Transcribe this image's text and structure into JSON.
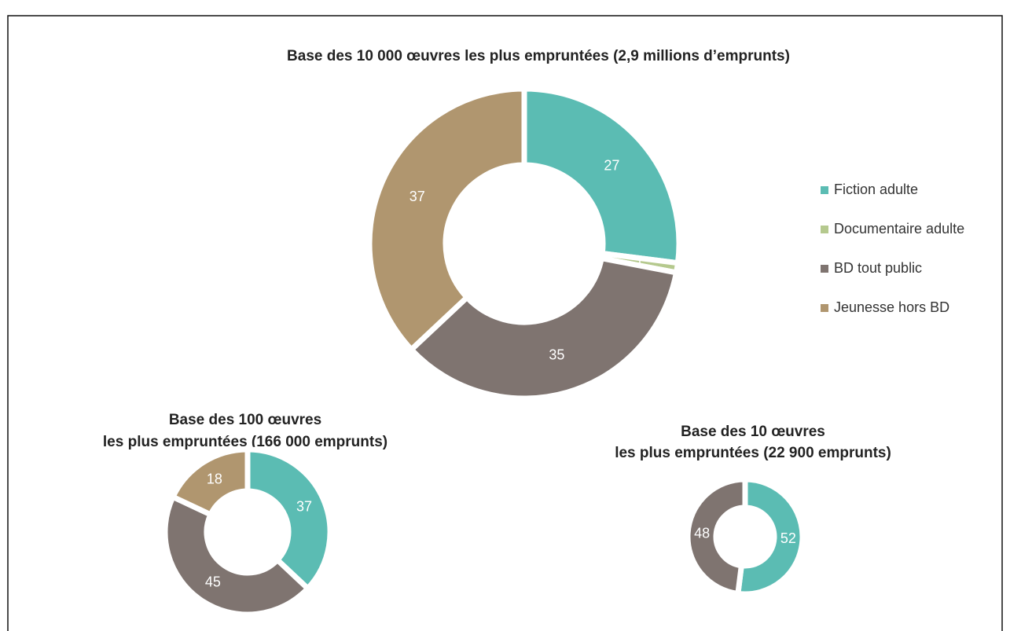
{
  "legend": {
    "categories": [
      "Fiction adulte",
      "Documentaire adulte",
      "BD tout public",
      "Jeunesse hors BD"
    ],
    "colors": [
      "#5bbcb3",
      "#b5c98e",
      "#7f7470",
      "#b0966f"
    ]
  },
  "chart_data": [
    {
      "type": "donut",
      "title": [
        "Base des 10 000 œuvres les plus empruntées (2,9 millions d’emprunts)"
      ],
      "values": [
        27,
        1,
        35,
        37
      ]
    },
    {
      "type": "donut",
      "title": [
        "Base des 100 œuvres",
        "les plus empruntées (166 000 emprunts)"
      ],
      "values": [
        37,
        null,
        45,
        18
      ]
    },
    {
      "type": "donut",
      "title": [
        "Base des 10 œuvres",
        "les plus empruntées (22 900 emprunts)"
      ],
      "values": [
        52,
        null,
        48,
        null
      ]
    }
  ]
}
